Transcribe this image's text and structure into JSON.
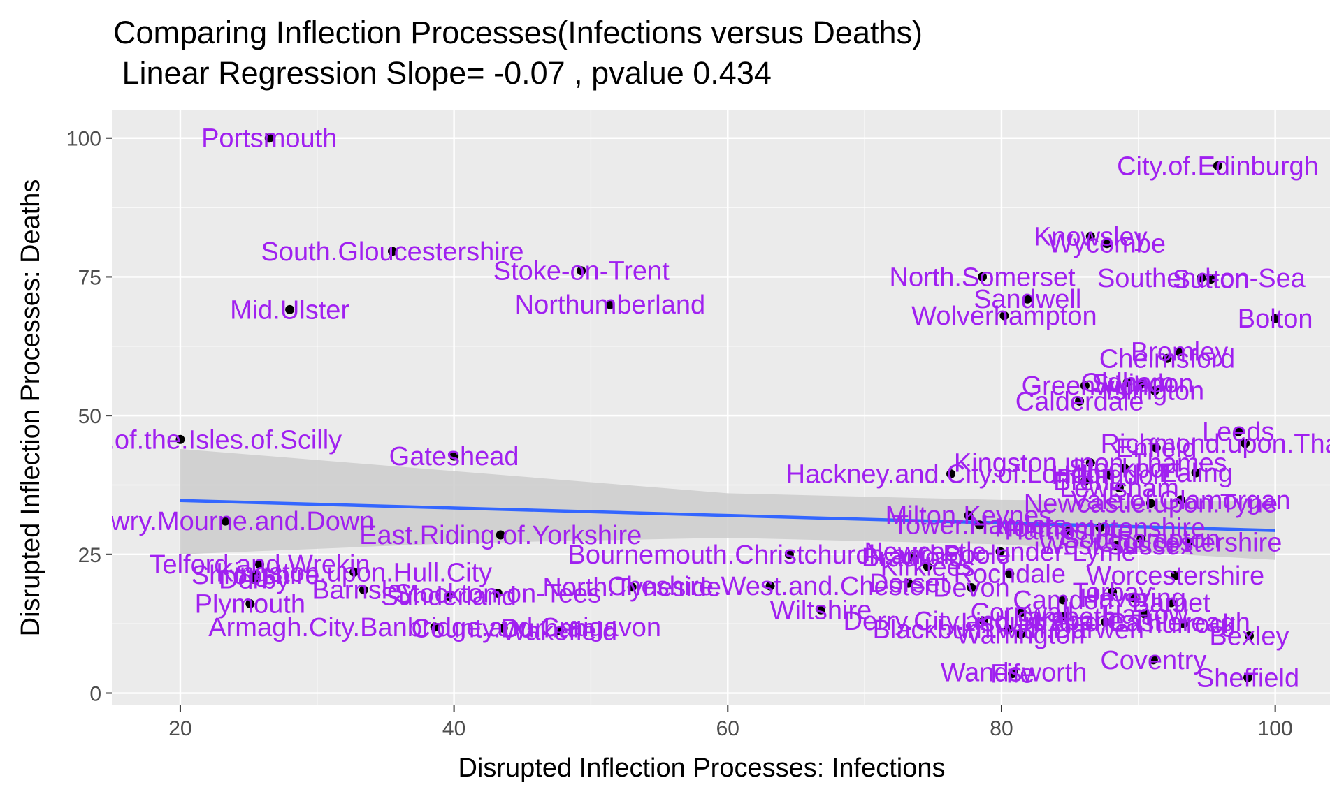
{
  "chart_data": {
    "type": "scatter",
    "title": "Comparing Inflection Processes(Infections versus Deaths)",
    "subtitle": " Linear Regression Slope= -0.07 , pvalue 0.434",
    "xlabel": "Disrupted Inflection Processes: Infections",
    "ylabel": "Disrupted Inflection Processes: Deaths",
    "xlim": [
      15,
      104
    ],
    "ylim": [
      -2.2,
      105
    ],
    "xticks": [
      20,
      40,
      60,
      80,
      100
    ],
    "yticks": [
      0,
      25,
      50,
      75,
      100
    ],
    "grid": true,
    "colors": {
      "panel": "#ebebeb",
      "grid": "#ffffff",
      "point": "#000000",
      "label": "#a020f0",
      "fit_line": "#3366ff",
      "ribbon": "#cccccc"
    },
    "fit": {
      "x": [
        20,
        40,
        60,
        80,
        100
      ],
      "y": [
        34.7,
        33.35,
        32.0,
        30.65,
        29.3
      ],
      "lower": [
        25.0,
        27.0,
        28.0,
        26.8,
        24.0
      ],
      "upper": [
        44.0,
        40.0,
        36.0,
        34.8,
        34.5
      ]
    },
    "points": [
      {
        "label": "Portsmouth",
        "x": 26.5,
        "y": 100
      },
      {
        "label": "City.of.Edinburgh",
        "x": 95.8,
        "y": 95
      },
      {
        "label": "Knowsley",
        "x": 86.5,
        "y": 82.3
      },
      {
        "label": "Wycombe",
        "x": 87.7,
        "y": 81
      },
      {
        "label": "South.Gloucestershire",
        "x": 35.5,
        "y": 79.6
      },
      {
        "label": "Stoke-on-Trent",
        "x": 49.3,
        "y": 76.1
      },
      {
        "label": "North.Somerset",
        "x": 78.6,
        "y": 75
      },
      {
        "label": "Southend-on-Sea",
        "x": 94.6,
        "y": 74.8
      },
      {
        "label": "Sutton",
        "x": 95.3,
        "y": 74.6
      },
      {
        "label": "Sandwell",
        "x": 81.9,
        "y": 71
      },
      {
        "label": "Northumberland",
        "x": 51.4,
        "y": 70
      },
      {
        "label": "Mid.Ulster",
        "x": 28,
        "y": 69.1
      },
      {
        "label": "Wolverhampton",
        "x": 80.2,
        "y": 68
      },
      {
        "label": "Bolton",
        "x": 100,
        "y": 67.5
      },
      {
        "label": "Bromley",
        "x": 93,
        "y": 61.5
      },
      {
        "label": "Chelmsford",
        "x": 92.1,
        "y": 60.3
      },
      {
        "label": "Oldham",
        "x": 89.2,
        "y": 56
      },
      {
        "label": "Greenwich",
        "x": 86.1,
        "y": 55.4
      },
      {
        "label": "Swindon",
        "x": 90.3,
        "y": 55.8
      },
      {
        "label": "Islington",
        "x": 91.2,
        "y": 54.5
      },
      {
        "label": "Calderdale",
        "x": 85.7,
        "y": 52.6
      },
      {
        "label": "Leeds",
        "x": 97.3,
        "y": 47.1
      },
      {
        "label": "Council.of.the.Isles.of.Scilly",
        "x": 20,
        "y": 45.7
      },
      {
        "label": "Richmond.upon.Thames",
        "x": 97.8,
        "y": 45
      },
      {
        "label": "Enfield",
        "x": 91.3,
        "y": 44.2
      },
      {
        "label": "Gateshead",
        "x": 40,
        "y": 42.7
      },
      {
        "label": "Kingston.upon.Thames",
        "x": 86.5,
        "y": 41.5
      },
      {
        "label": "Stockport",
        "x": 89,
        "y": 40.5
      },
      {
        "label": "Ealing",
        "x": 94.2,
        "y": 39.7
      },
      {
        "label": "Hackney.and.City.of.London",
        "x": 76.3,
        "y": 39.5
      },
      {
        "label": "Hillingdon",
        "x": 87.9,
        "y": 39.3
      },
      {
        "label": "Brent",
        "x": 86.1,
        "y": 38.2
      },
      {
        "label": "Lewisham",
        "x": 88.6,
        "y": 37
      },
      {
        "label": "Vale.of.Glamorgan",
        "x": 93.1,
        "y": 34.8
      },
      {
        "label": "Newcastle.upon.Tyne",
        "x": 90.9,
        "y": 34.2
      },
      {
        "label": "Milton.Keynes",
        "x": 77.6,
        "y": 32
      },
      {
        "label": "Newry.Mourne.and.Down",
        "x": 23.3,
        "y": 31
      },
      {
        "label": "Tower.Hamlets",
        "x": 78.4,
        "y": 30.3
      },
      {
        "label": "Northamptonshire",
        "x": 87.2,
        "y": 29.8
      },
      {
        "label": "Hampshire",
        "x": 84.9,
        "y": 29.3
      },
      {
        "label": "East.Riding.of.Yorkshire",
        "x": 43.4,
        "y": 28.5
      },
      {
        "label": "Southampton",
        "x": 90.2,
        "y": 27.8
      },
      {
        "label": "Gloucestershire",
        "x": 93.7,
        "y": 27.2
      },
      {
        "label": "West.Sussex",
        "x": 88.4,
        "y": 26.6
      },
      {
        "label": "Newcastle-under-Lyme",
        "x": 79.9,
        "y": 25.5
      },
      {
        "label": "Bournemouth.Christchurch.and.Poole",
        "x": 64.5,
        "y": 25
      },
      {
        "label": "Bradford",
        "x": 73.5,
        "y": 24.5
      },
      {
        "label": "Telford.and.Wrekin",
        "x": 25.8,
        "y": 23.2
      },
      {
        "label": "Kirklees",
        "x": 74.6,
        "y": 22.8
      },
      {
        "label": "Shropshire",
        "x": 25.5,
        "y": 21.3
      },
      {
        "label": "Kingston.upon.Hull.City",
        "x": 32.7,
        "y": 21.8
      },
      {
        "label": "Rochdale",
        "x": 80.6,
        "y": 21.5
      },
      {
        "label": "Worcestershire",
        "x": 92.7,
        "y": 21.2
      },
      {
        "label": "Derby",
        "x": 25.4,
        "y": 20.5
      },
      {
        "label": "Cheshire.West.and.Chester",
        "x": 63.1,
        "y": 19.3
      },
      {
        "label": "North.Tyneside",
        "x": 53,
        "y": 19.1
      },
      {
        "label": "Dorset",
        "x": 73.2,
        "y": 19.8
      },
      {
        "label": "Devon",
        "x": 77.8,
        "y": 19
      },
      {
        "label": "Barnsley",
        "x": 33.4,
        "y": 18.6
      },
      {
        "label": "Stockton-on-Tees",
        "x": 43.2,
        "y": 18
      },
      {
        "label": "Sunderland",
        "x": 39.6,
        "y": 17.5
      },
      {
        "label": "Torbay",
        "x": 88.1,
        "y": 18.2
      },
      {
        "label": "Havering",
        "x": 89.6,
        "y": 17.2
      },
      {
        "label": "Camden",
        "x": 84.5,
        "y": 16.8
      },
      {
        "label": "Plymouth",
        "x": 25.1,
        "y": 16.1
      },
      {
        "label": "Barnet",
        "x": 92.4,
        "y": 16.3
      },
      {
        "label": "Wiltshire",
        "x": 66.8,
        "y": 15
      },
      {
        "label": "Cornwall",
        "x": 81.5,
        "y": 14.6
      },
      {
        "label": "Harrow",
        "x": 90.5,
        "y": 14.2
      },
      {
        "label": "Lambeth",
        "x": 84.6,
        "y": 13.8
      },
      {
        "label": "Derry.City.and.Strabane",
        "x": 78.7,
        "y": 13
      },
      {
        "label": "Lisburn.and.Castlereagh",
        "x": 87.6,
        "y": 12.8
      },
      {
        "label": "Thurrock",
        "x": 93.3,
        "y": 12.5
      },
      {
        "label": "Armagh.City.Banbridge.and.Craigavon",
        "x": 38.6,
        "y": 11.9
      },
      {
        "label": "County.Durham",
        "x": 43.6,
        "y": 11.7
      },
      {
        "label": "Wakefield",
        "x": 47.7,
        "y": 11.2
      },
      {
        "label": "Blackburn.with.Darwen",
        "x": 80.5,
        "y": 11.5
      },
      {
        "label": "Warrington",
        "x": 81.4,
        "y": 10.6
      },
      {
        "label": "Bexley",
        "x": 98.1,
        "y": 10.3
      },
      {
        "label": "Coventry",
        "x": 91.1,
        "y": 6
      },
      {
        "label": "Wandsworth",
        "x": 80.9,
        "y": 3.8
      },
      {
        "label": "Fife",
        "x": 80.8,
        "y": 3.5
      },
      {
        "label": "Sheffield",
        "x": 98,
        "y": 2.8
      }
    ]
  }
}
